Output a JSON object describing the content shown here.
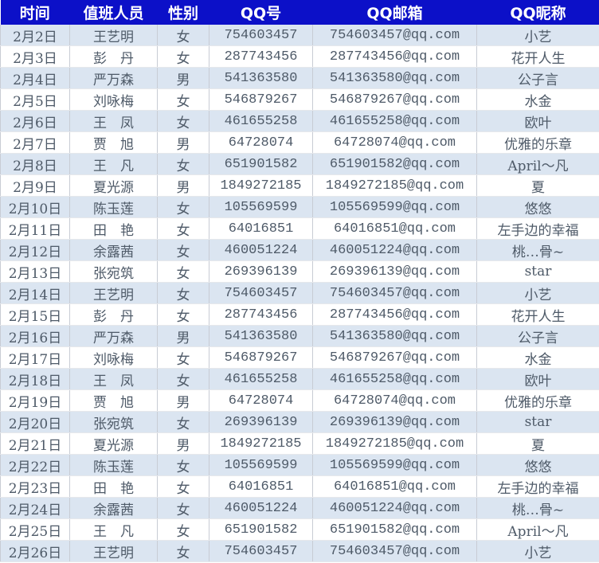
{
  "header": [
    "时间",
    "值班人员",
    "性别",
    "QQ号",
    "QQ邮箱",
    "QQ昵称"
  ],
  "rows": [
    [
      "2月2日",
      "王艺明",
      "女",
      "754603457",
      "754603457@qq.com",
      "小艺"
    ],
    [
      "2月3日",
      "彭　丹",
      "女",
      "287743456",
      "287743456@qq.com",
      "花开人生"
    ],
    [
      "2月4日",
      "严万森",
      "男",
      "541363580",
      "541363580@qq.com",
      "公子言"
    ],
    [
      "2月5日",
      "刘咏梅",
      "女",
      "546879267",
      "546879267@qq.com",
      "水金"
    ],
    [
      "2月6日",
      "王　凤",
      "女",
      "461655258",
      "461655258@qq.com",
      "欧叶"
    ],
    [
      "2月7日",
      "贾　旭",
      "男",
      "64728074",
      "64728074@qq.com",
      "优雅的乐章"
    ],
    [
      "2月8日",
      "王　凡",
      "女",
      "651901582",
      "651901582@qq.com",
      "April～凡"
    ],
    [
      "2月9日",
      "夏光源",
      "男",
      "1849272185",
      "1849272185@qq.com",
      "夏"
    ],
    [
      "2月10日",
      "陈玉莲",
      "女",
      "105569599",
      "105569599@qq.com",
      "悠悠"
    ],
    [
      "2月11日",
      "田　艳",
      "女",
      "64016851",
      "64016851@qq.com",
      "左手边的幸福"
    ],
    [
      "2月12日",
      "余露茜",
      "女",
      "460051224",
      "460051224@qq.com",
      "桃…骨~"
    ],
    [
      "2月13日",
      "张宛筑",
      "女",
      "269396139",
      "269396139@qq.com",
      "star"
    ],
    [
      "2月14日",
      "王艺明",
      "女",
      "754603457",
      "754603457@qq.com",
      "小艺"
    ],
    [
      "2月15日",
      "彭　丹",
      "女",
      "287743456",
      "287743456@qq.com",
      "花开人生"
    ],
    [
      "2月16日",
      "严万森",
      "男",
      "541363580",
      "541363580@qq.com",
      "公子言"
    ],
    [
      "2月17日",
      "刘咏梅",
      "女",
      "546879267",
      "546879267@qq.com",
      "水金"
    ],
    [
      "2月18日",
      "王　凤",
      "女",
      "461655258",
      "461655258@qq.com",
      "欧叶"
    ],
    [
      "2月19日",
      "贾　旭",
      "男",
      "64728074",
      "64728074@qq.com",
      "优雅的乐章"
    ],
    [
      "2月20日",
      "张宛筑",
      "女",
      "269396139",
      "269396139@qq.com",
      "star"
    ],
    [
      "2月21日",
      "夏光源",
      "男",
      "1849272185",
      "1849272185@qq.com",
      "夏"
    ],
    [
      "2月22日",
      "陈玉莲",
      "女",
      "105569599",
      "105569599@qq.com",
      "悠悠"
    ],
    [
      "2月23日",
      "田　艳",
      "女",
      "64016851",
      "64016851@qq.com",
      "左手边的幸福"
    ],
    [
      "2月24日",
      "余露茜",
      "女",
      "460051224",
      "460051224@qq.com",
      "桃…骨~"
    ],
    [
      "2月25日",
      "王　凡",
      "女",
      "651901582",
      "651901582@qq.com",
      "April～凡"
    ],
    [
      "2月26日",
      "王艺明",
      "女",
      "754603457",
      "754603457@qq.com",
      "小艺"
    ]
  ],
  "colors": {
    "header_bg": "#0c10c8",
    "band": "#dbe5f1"
  }
}
